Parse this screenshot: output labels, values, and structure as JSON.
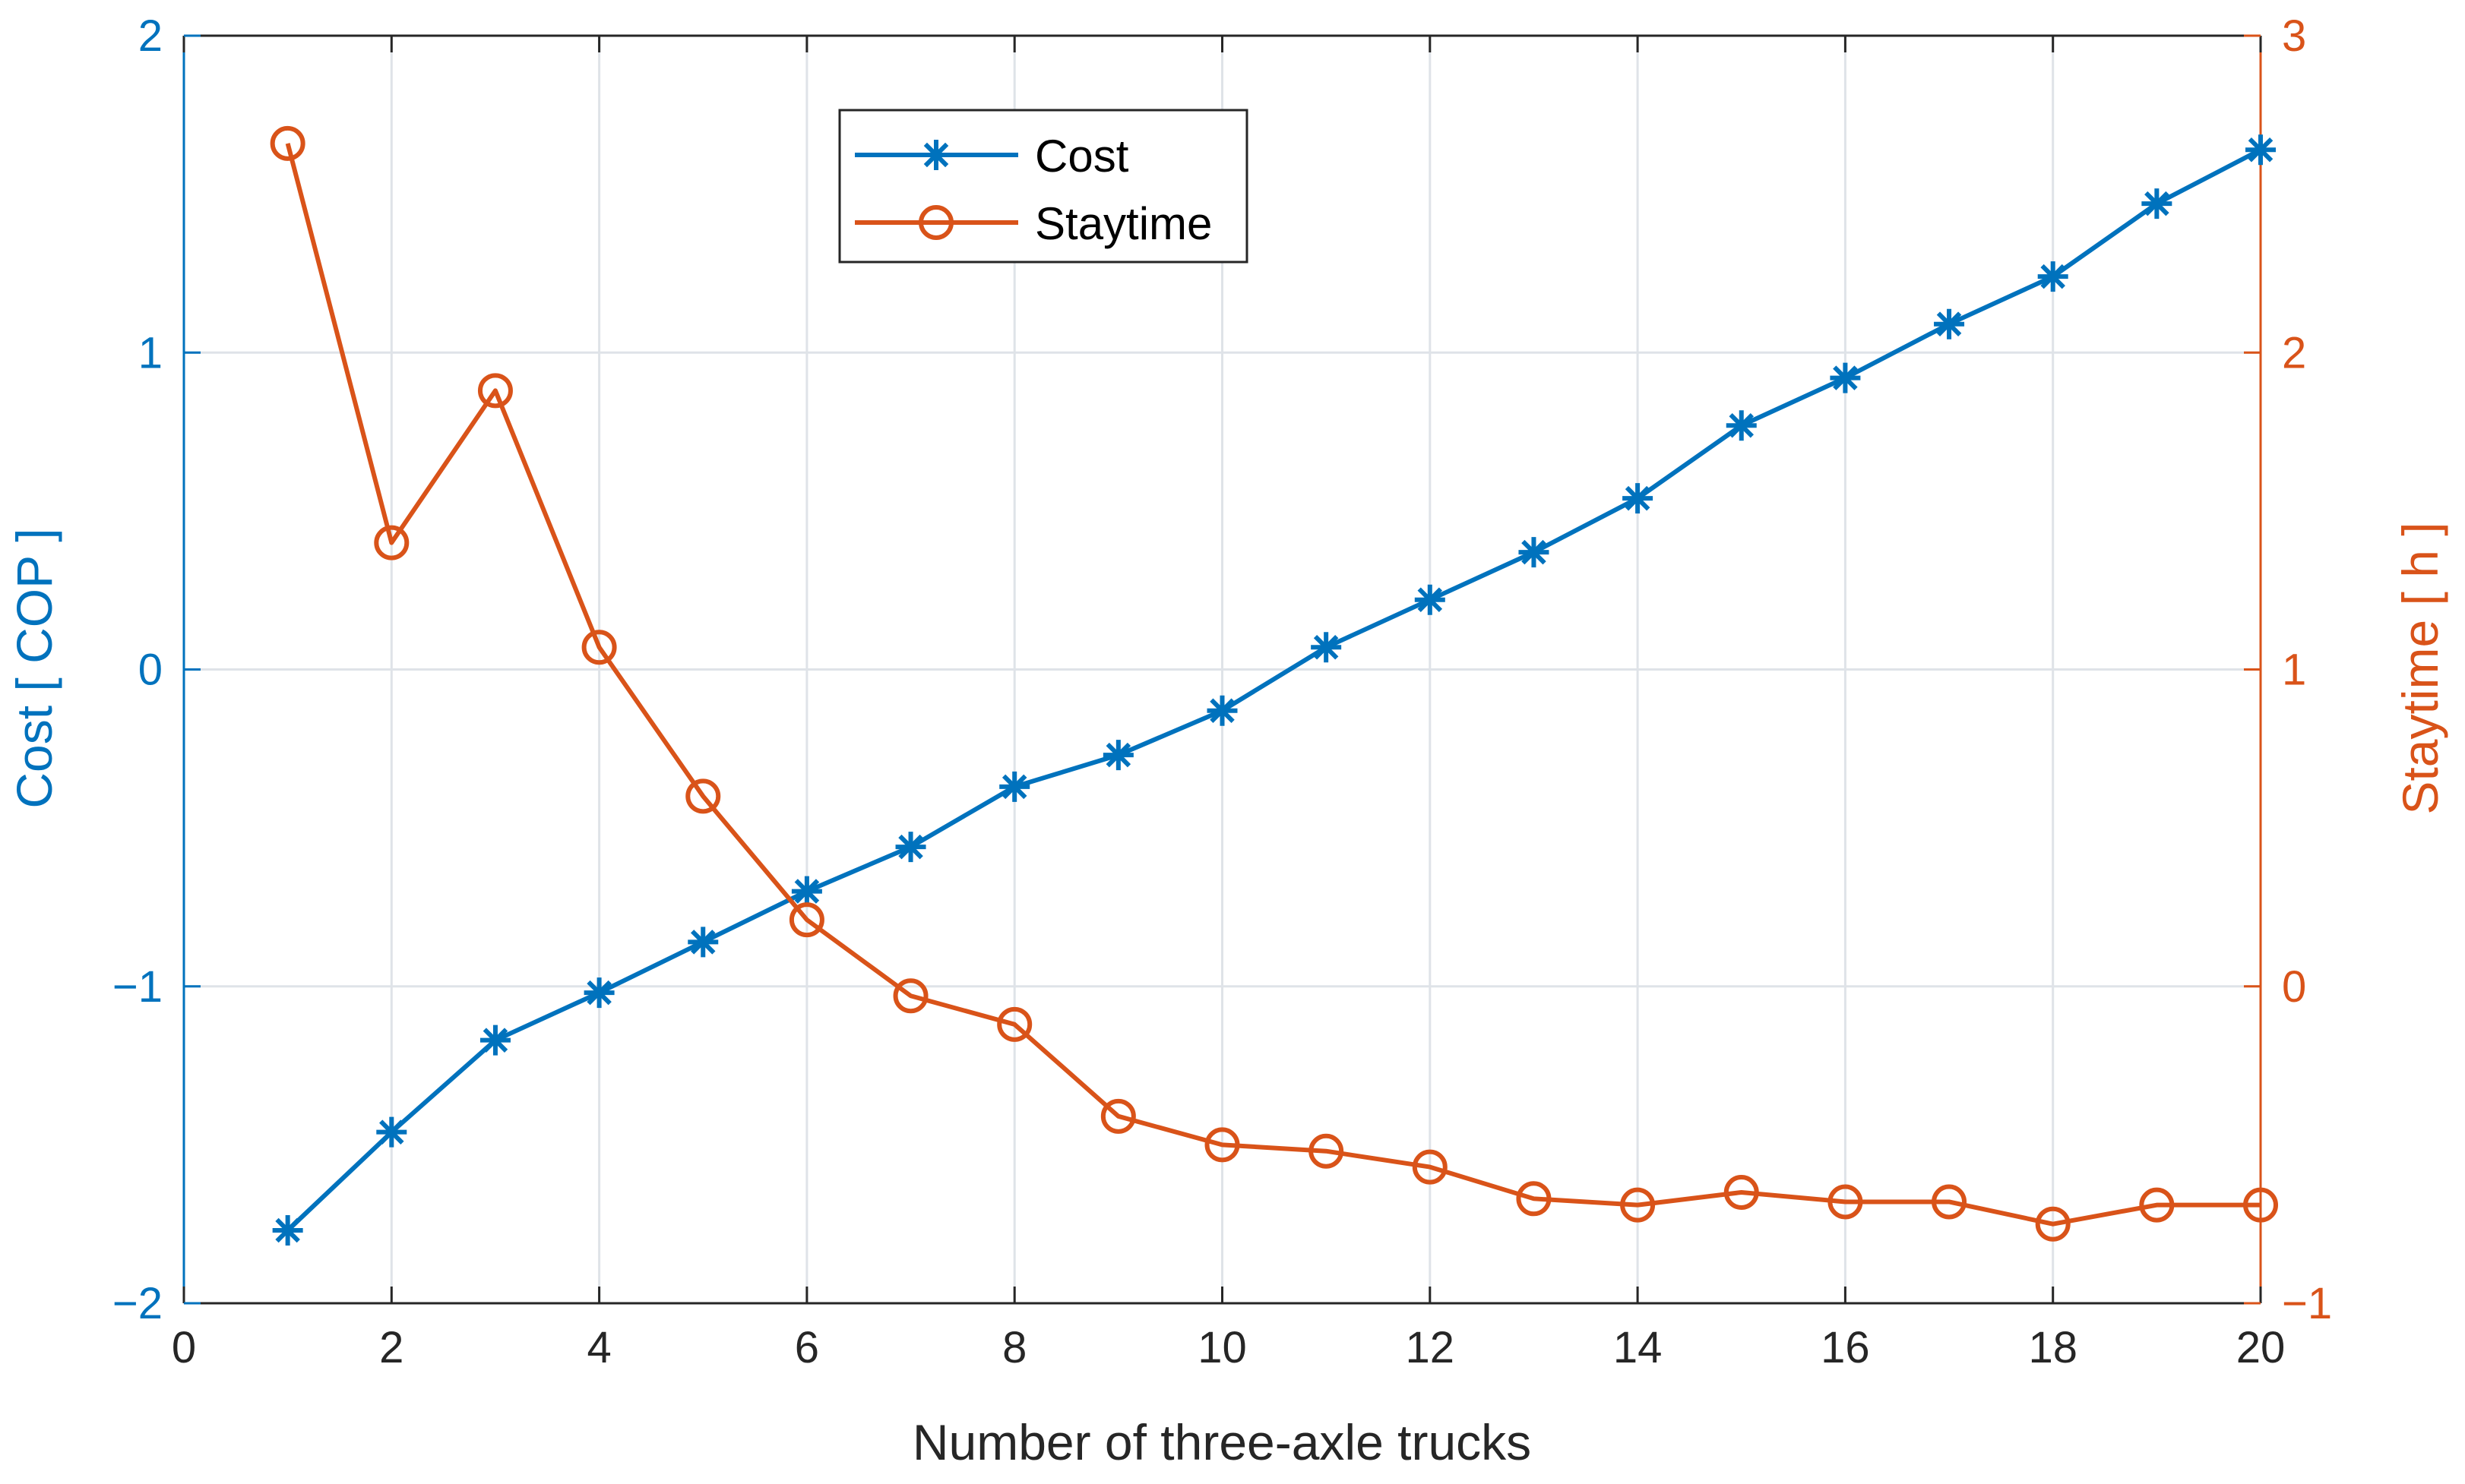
{
  "chart_data": {
    "type": "line",
    "title": "",
    "xlabel": "Number of three-axle trucks",
    "ylabel_left": "Cost [ COP ]",
    "ylabel_right": "Staytime [ h ]",
    "xlim": [
      0,
      20
    ],
    "ylim_left": [
      -2,
      2
    ],
    "ylim_right": [
      -1,
      3
    ],
    "x_ticks": [
      0,
      2,
      4,
      6,
      8,
      10,
      12,
      14,
      16,
      18,
      20
    ],
    "x_tick_labels": [
      "0",
      "2",
      "4",
      "6",
      "8",
      "10",
      "12",
      "14",
      "16",
      "18",
      "20"
    ],
    "y_left_ticks": [
      -2,
      -1,
      0,
      1,
      2
    ],
    "y_left_tick_labels": [
      "−2",
      "−1",
      "0",
      "1",
      "2"
    ],
    "y_right_ticks": [
      -1,
      0,
      1,
      2,
      3
    ],
    "y_right_tick_labels": [
      "−1",
      "0",
      "1",
      "2",
      "3"
    ],
    "grid": true,
    "legend_position": "top-center",
    "x": [
      1,
      2,
      3,
      4,
      5,
      6,
      7,
      8,
      9,
      10,
      11,
      12,
      13,
      14,
      15,
      16,
      17,
      18,
      19,
      20
    ],
    "series": [
      {
        "name": "Cost",
        "axis": "left",
        "marker": "asterisk",
        "color": "#0072BD",
        "values": [
          -1.77,
          -1.46,
          -1.17,
          -1.02,
          -0.86,
          -0.7,
          -0.56,
          -0.37,
          -0.27,
          -0.13,
          0.07,
          0.22,
          0.37,
          0.54,
          0.77,
          0.92,
          1.09,
          1.24,
          1.47,
          1.64
        ]
      },
      {
        "name": "Staytime",
        "axis": "right",
        "marker": "circle",
        "color": "#D95319",
        "values": [
          2.66,
          1.4,
          1.88,
          1.07,
          0.6,
          0.21,
          -0.03,
          -0.12,
          -0.41,
          -0.5,
          -0.52,
          -0.57,
          -0.67,
          -0.69,
          -0.65,
          -0.68,
          -0.68,
          -0.75,
          -0.69,
          -0.69
        ]
      }
    ]
  }
}
